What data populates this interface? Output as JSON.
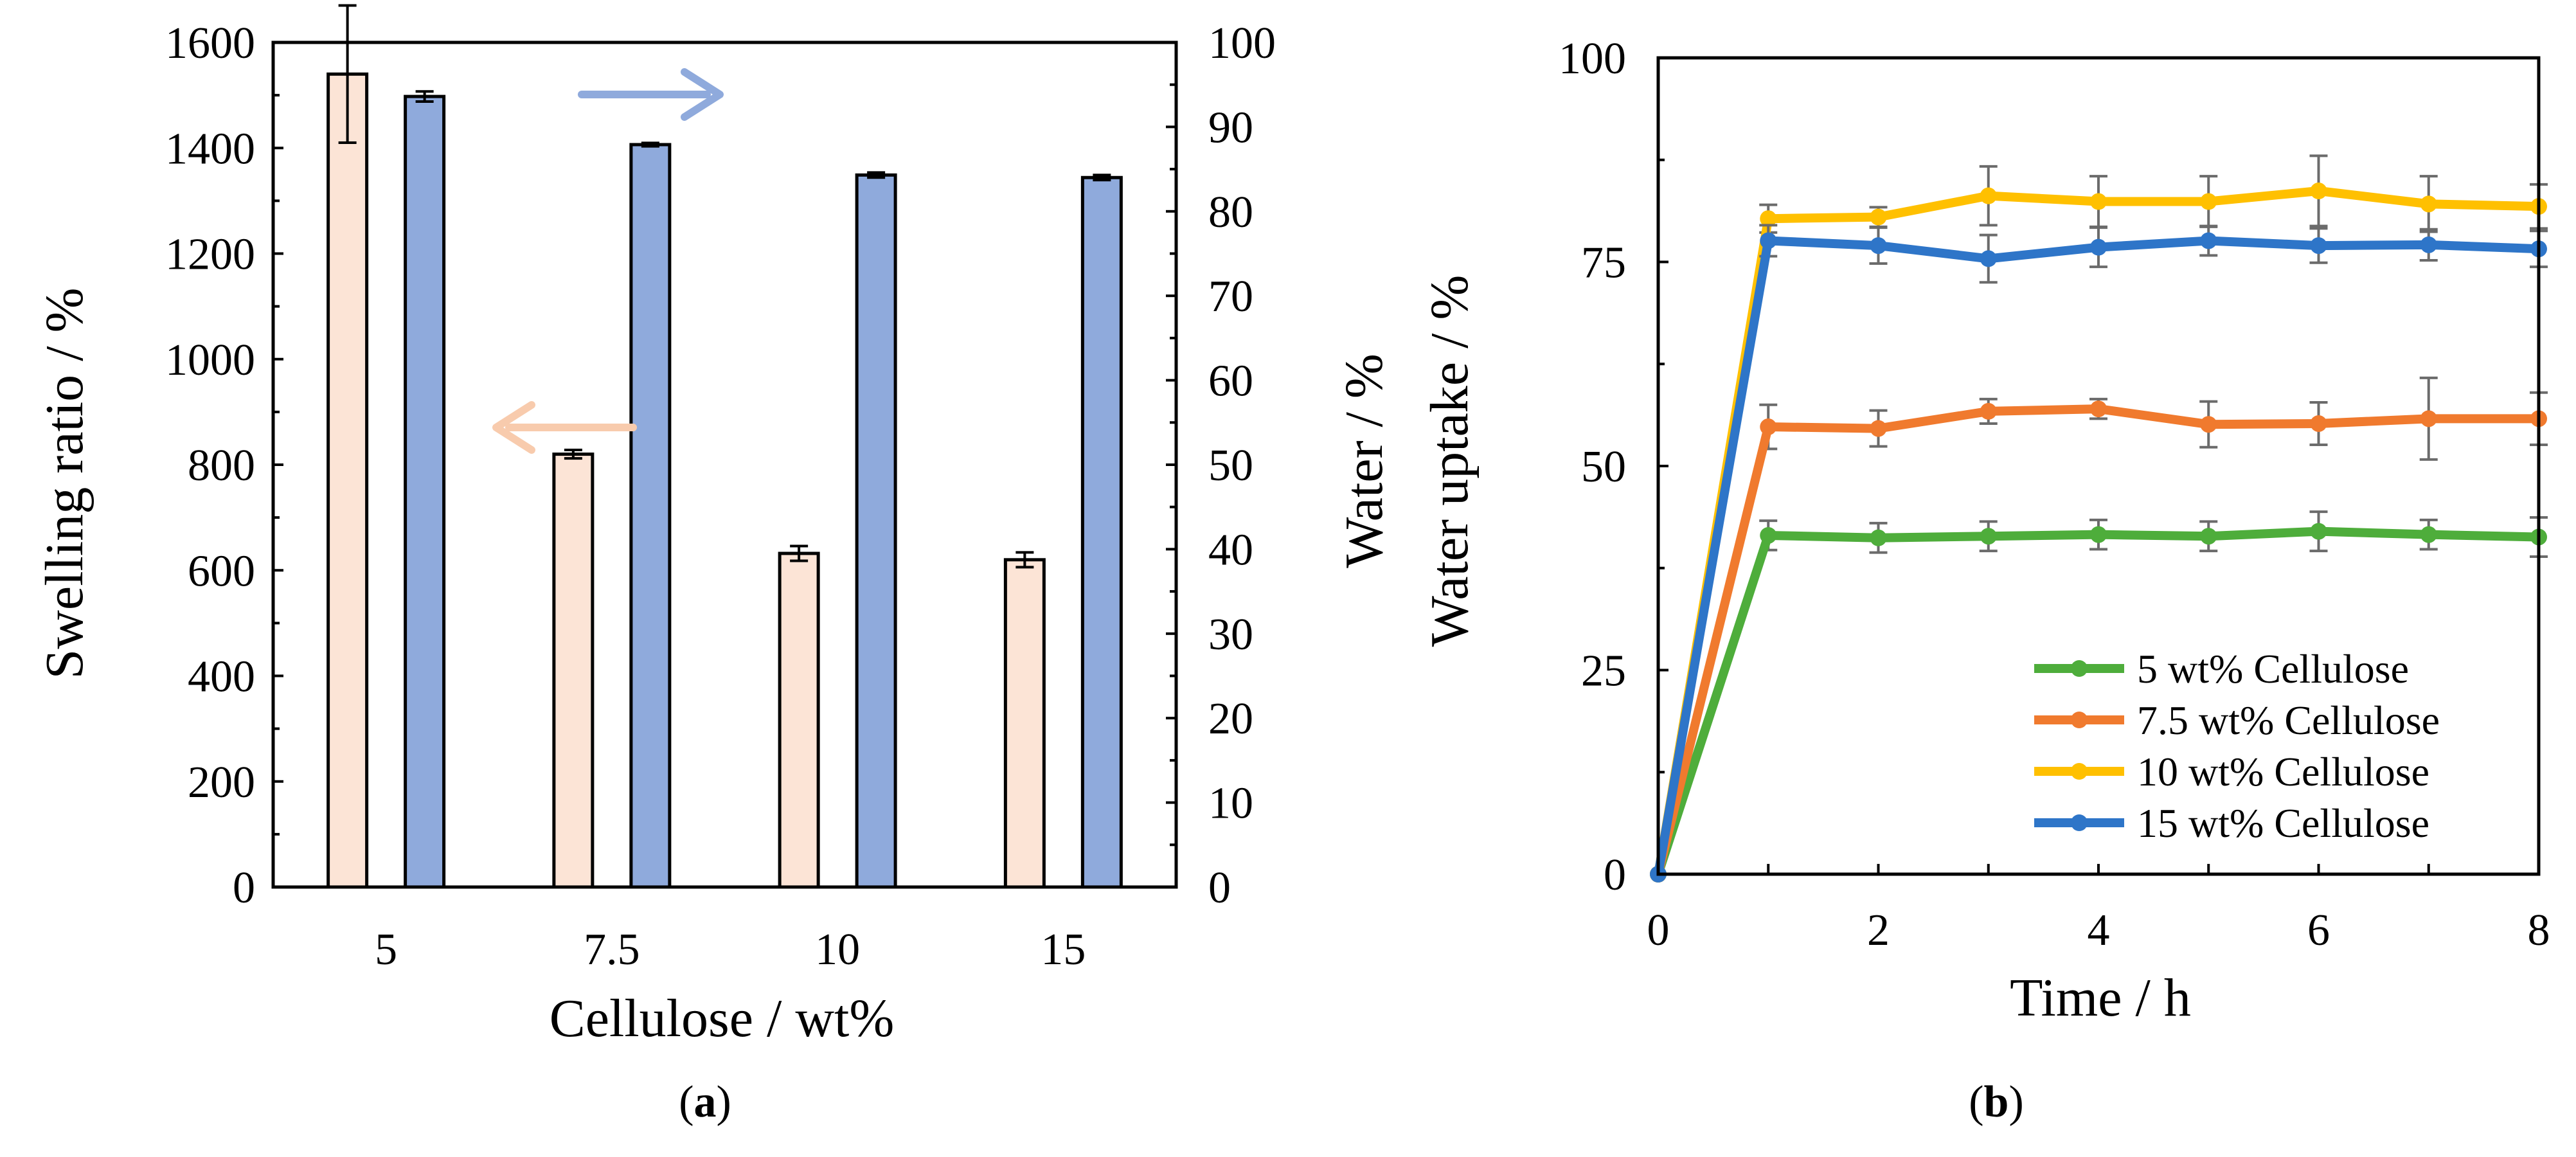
{
  "chart_data": [
    {
      "panel": "a",
      "type": "bar",
      "caption": "(a)",
      "caption_letter": "a",
      "xlabel": "Cellulose / wt%",
      "ylabel_left": "Swelling ratio / %",
      "ylabel_right": "Water / %",
      "categories": [
        "5",
        "7.5",
        "10",
        "15"
      ],
      "ylim_left": [
        0,
        1600
      ],
      "ylim_right": [
        0,
        100
      ],
      "yticks_left": [
        0,
        200,
        400,
        600,
        800,
        1000,
        1200,
        1400,
        1600
      ],
      "yticks_right": [
        0,
        10,
        20,
        30,
        40,
        50,
        60,
        70,
        80,
        90,
        100
      ],
      "series": [
        {
          "name": "Swelling ratio",
          "axis": "left",
          "color": "#FCE4D6",
          "values": [
            1540,
            820,
            632,
            620
          ],
          "errors": [
            130,
            8,
            14,
            14
          ]
        },
        {
          "name": "Water",
          "axis": "right",
          "color": "#8FAADC",
          "values": [
            93.6,
            87.9,
            84.3,
            84.0
          ],
          "errors": [
            0.6,
            0.2,
            0.3,
            0.3
          ]
        }
      ],
      "arrows": [
        {
          "direction": "right",
          "points_to": "right axis",
          "color": "#8FAADC"
        },
        {
          "direction": "left",
          "points_to": "left axis",
          "color": "#F8CBAD"
        }
      ]
    },
    {
      "panel": "b",
      "type": "line",
      "caption": "(b)",
      "caption_letter": "b",
      "xlabel": "Time / h",
      "ylabel": "Water uptake / %",
      "x": [
        0,
        1,
        2,
        3,
        4,
        5,
        6,
        7,
        8
      ],
      "xlim": [
        0,
        8
      ],
      "ylim": [
        0,
        100
      ],
      "xticks": [
        0,
        2,
        4,
        6,
        8
      ],
      "yticks": [
        0,
        25,
        50,
        75,
        100
      ],
      "legend_position": "bottom-right",
      "series": [
        {
          "name": "5 wt% Cellulose",
          "color": "#4EAD3B",
          "values": [
            0,
            41.5,
            41.2,
            41.4,
            41.6,
            41.4,
            42.0,
            41.6,
            41.3
          ],
          "errors": [
            0,
            1.8,
            1.8,
            1.8,
            1.8,
            1.8,
            2.4,
            1.8,
            2.4
          ]
        },
        {
          "name": "7.5 wt% Cellulose",
          "color": "#F07A2E",
          "values": [
            0,
            54.8,
            54.6,
            56.7,
            57.0,
            55.1,
            55.2,
            55.8,
            55.8
          ],
          "errors": [
            0,
            2.7,
            2.2,
            1.5,
            1.2,
            2.8,
            2.6,
            5.0,
            3.2
          ]
        },
        {
          "name": "10 wt% Cellulose",
          "color": "#FFC000",
          "values": [
            0,
            80.3,
            80.5,
            83.1,
            82.4,
            82.4,
            83.7,
            82.1,
            81.8
          ],
          "errors": [
            0,
            1.7,
            1.2,
            3.6,
            3.1,
            3.1,
            4.3,
            3.4,
            2.7
          ]
        },
        {
          "name": "15 wt% Cellulose",
          "color": "#2E75C8",
          "values": [
            0,
            77.6,
            77.0,
            75.4,
            76.8,
            77.6,
            77.0,
            77.1,
            76.6
          ],
          "errors": [
            0,
            1.9,
            2.2,
            2.9,
            2.4,
            1.8,
            2.1,
            1.9,
            2.2
          ]
        }
      ]
    }
  ]
}
